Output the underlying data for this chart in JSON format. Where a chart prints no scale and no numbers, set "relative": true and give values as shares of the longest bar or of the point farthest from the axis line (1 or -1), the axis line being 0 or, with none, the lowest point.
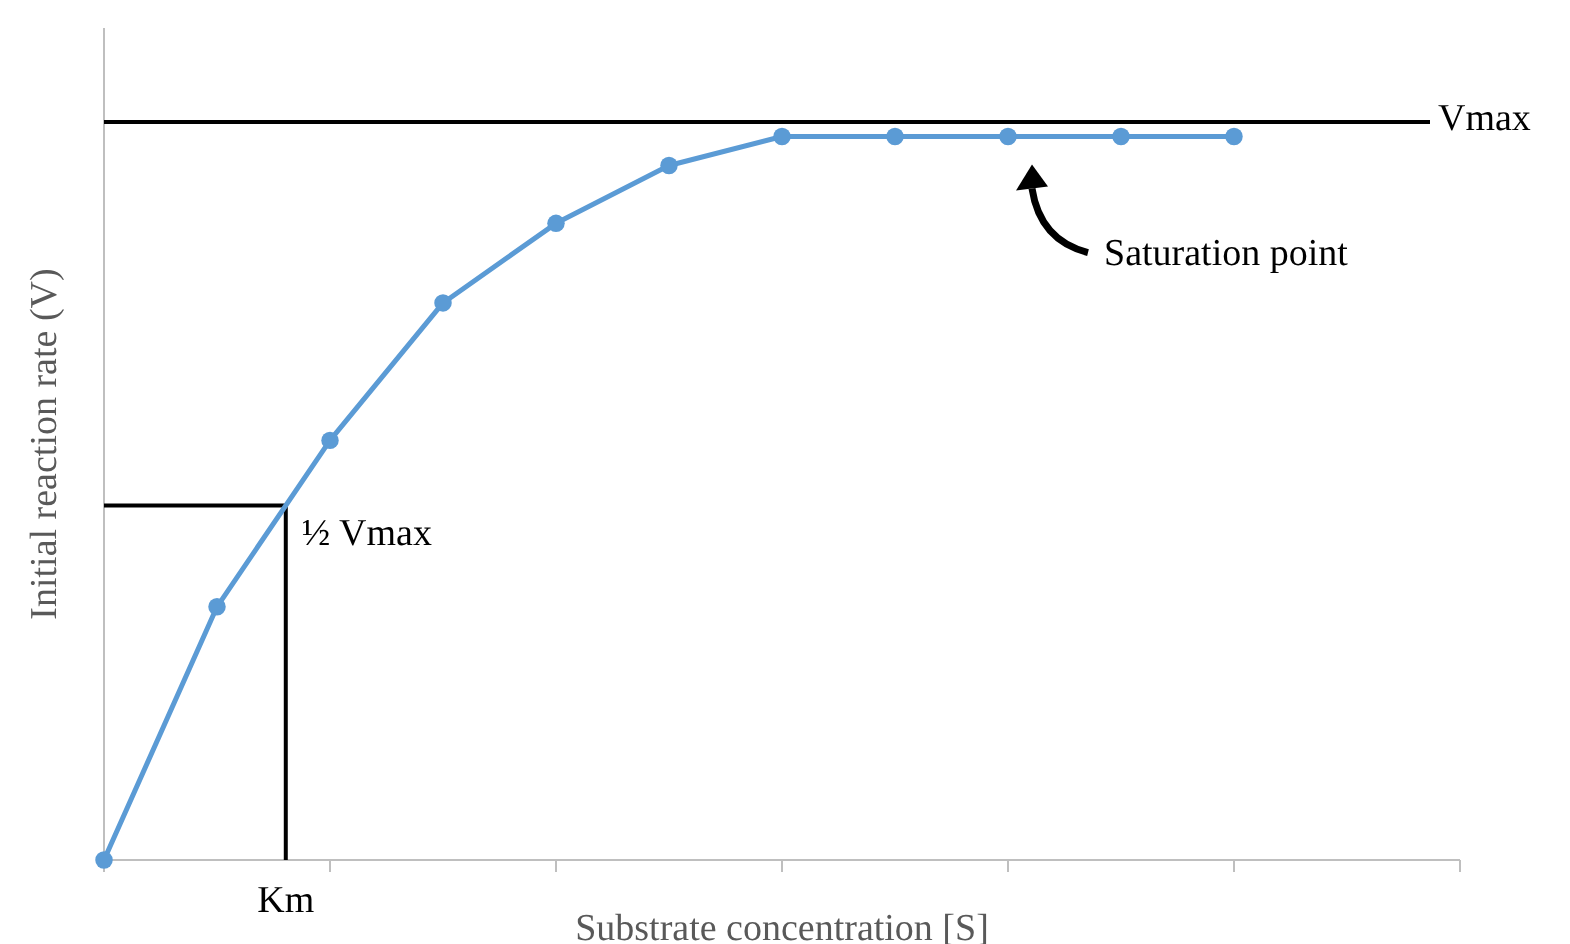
{
  "chart_data": {
    "type": "line",
    "xlabel": "Substrate concentration [S]",
    "ylabel": "Initial reaction rate (V)",
    "relative": true,
    "categories": [
      null,
      null,
      null,
      null,
      null,
      null,
      null,
      null,
      null,
      null,
      null
    ],
    "series": [
      {
        "color": "#5b9bd5",
        "values": [
          0,
          0.35,
          0.58,
          0.77,
          0.88,
          0.96,
          1,
          1,
          1,
          1,
          1
        ]
      }
    ],
    "marker": "circle",
    "ref_lines": [
      {
        "axis": "y",
        "value": 1.02,
        "label": "Vmax",
        "color": "#000000"
      },
      {
        "axis": "y",
        "value": 0.49,
        "label": "½ Vmax",
        "color": "#000000"
      }
    ],
    "annotations": [
      "Km",
      "Saturation point"
    ]
  }
}
